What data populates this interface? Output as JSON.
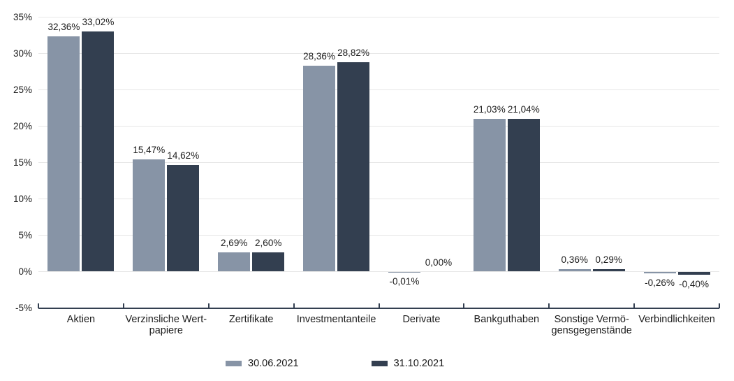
{
  "chart_data": {
    "type": "bar",
    "categories": [
      "Aktien",
      "Verzinsliche Wert-\npapiere",
      "Zertifikate",
      "Investmentanteile",
      "Derivate",
      "Bankguthaben",
      "Sonstige Vermö-\ngensgegenstände",
      "Verbindlichkeiten"
    ],
    "series": [
      {
        "name": "30.06.2021",
        "color": "#8794A6",
        "values": [
          32.36,
          15.47,
          2.69,
          28.36,
          -0.01,
          21.03,
          0.36,
          -0.26
        ],
        "labels": [
          "32,36%",
          "15,47%",
          "2,69%",
          "28,36%",
          "-0,01%",
          "21,03%",
          "0,36%",
          "-0,26%"
        ]
      },
      {
        "name": "31.10.2021",
        "color": "#333F50",
        "values": [
          33.02,
          14.62,
          2.6,
          28.82,
          0.0,
          21.04,
          0.29,
          -0.4
        ],
        "labels": [
          "33,02%",
          "14,62%",
          "2,60%",
          "28,82%",
          "0,00%",
          "21,04%",
          "0,29%",
          "-0,40%"
        ]
      }
    ],
    "y_axis": {
      "tick_labels": [
        "35%",
        "30%",
        "25%",
        "20%",
        "15%",
        "10%",
        "5%",
        "0%",
        "-5%"
      ],
      "tick_values": [
        35,
        30,
        25,
        20,
        15,
        10,
        5,
        0,
        -5
      ]
    },
    "ylim": [
      -5,
      35
    ],
    "grid": true,
    "legend_position": "bottom",
    "legend": [
      {
        "label": "30.06.2021",
        "color": "#8794A6"
      },
      {
        "label": "31.10.2021",
        "color": "#333F50"
      }
    ],
    "colors": {
      "grid": "#e7e7e7",
      "axis": "#333F50",
      "text": "#1c1c1c",
      "background": "#ffffff"
    }
  }
}
